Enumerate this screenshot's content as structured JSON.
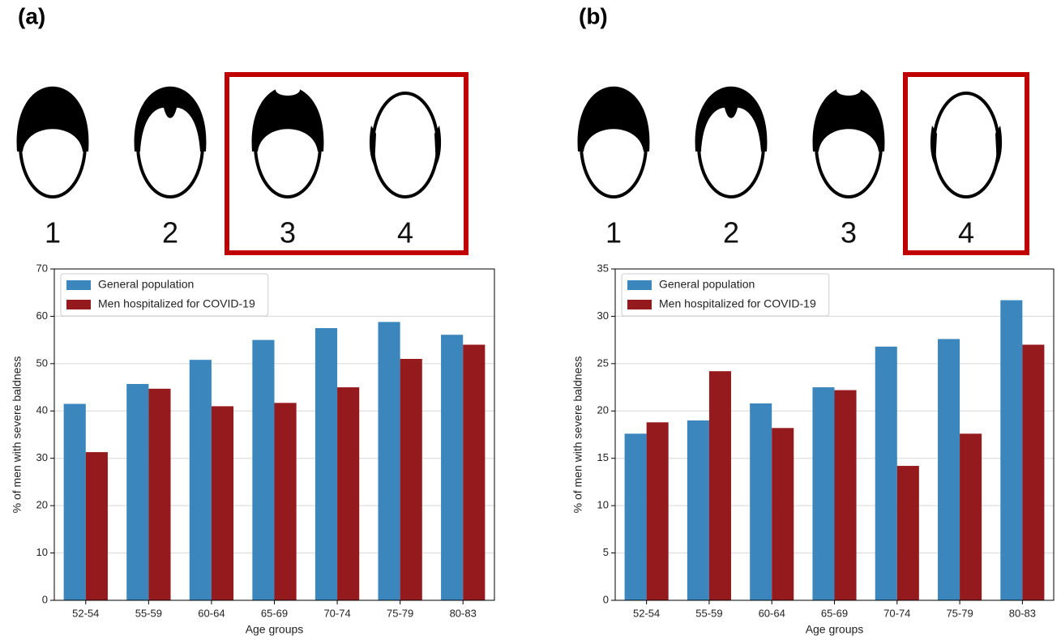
{
  "chart_data": [
    {
      "type": "bar",
      "panel_label": "(a)",
      "stage_labels": [
        "1",
        "2",
        "3",
        "4"
      ],
      "highlighted_stages": [
        "3",
        "4"
      ],
      "categories": [
        "52-54",
        "55-59",
        "60-64",
        "65-69",
        "70-74",
        "75-79",
        "80-83"
      ],
      "series": [
        {
          "name": "General population",
          "color": "#3a86bd",
          "values": [
            41.5,
            45.7,
            50.8,
            55.0,
            57.5,
            58.8,
            56.1
          ]
        },
        {
          "name": "Men hospitalized for COVID-19",
          "color": "#951a1d",
          "values": [
            31.3,
            44.7,
            41.0,
            41.7,
            45.0,
            51.0,
            54.0
          ]
        }
      ],
      "xlabel": "Age groups",
      "ylabel": "% of men with severe baldness",
      "ylim": [
        0,
        70
      ],
      "yticks": [
        0,
        10,
        20,
        30,
        40,
        50,
        60,
        70
      ],
      "grid": true,
      "legend": "upper left"
    },
    {
      "type": "bar",
      "panel_label": "(b)",
      "stage_labels": [
        "1",
        "2",
        "3",
        "4"
      ],
      "highlighted_stages": [
        "4"
      ],
      "categories": [
        "52-54",
        "55-59",
        "60-64",
        "65-69",
        "70-74",
        "75-79",
        "80-83"
      ],
      "series": [
        {
          "name": "General population",
          "color": "#3a86bd",
          "values": [
            17.6,
            19.0,
            20.8,
            22.5,
            26.8,
            27.6,
            31.7
          ]
        },
        {
          "name": "Men hospitalized for COVID-19",
          "color": "#951a1d",
          "values": [
            18.8,
            24.2,
            18.2,
            22.2,
            14.2,
            17.6,
            27.0
          ]
        }
      ],
      "xlabel": "Age groups",
      "ylabel": "% of men with severe baldness",
      "ylim": [
        0,
        35
      ],
      "yticks": [
        0,
        5,
        10,
        15,
        20,
        25,
        30,
        35
      ],
      "grid": true,
      "legend": "upper left"
    }
  ]
}
